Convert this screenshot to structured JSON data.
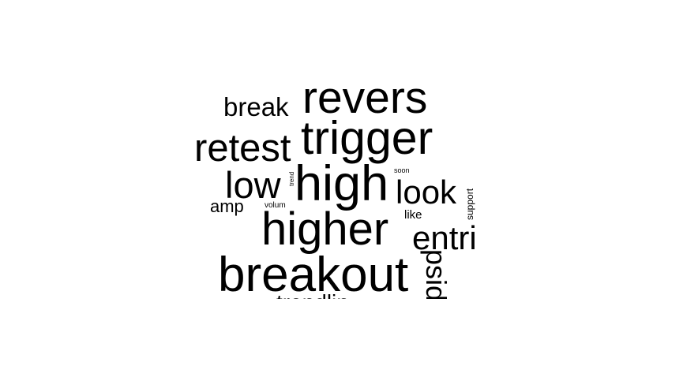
{
  "wordcloud": {
    "words": {
      "revers": "revers",
      "break": "break",
      "retest": "retest",
      "trigger": "trigger",
      "low": "low",
      "trend": "trend",
      "high": "high",
      "soon": "soon",
      "look": "look",
      "support": "support",
      "amp": "amp",
      "volum": "volum",
      "like": "like",
      "higher": "higher",
      "entri": "entri",
      "breakout": "breakout",
      "psid": "psid",
      "trendlin": "trendlin"
    },
    "text_color": "#000000",
    "background_color": "#ffffff"
  }
}
